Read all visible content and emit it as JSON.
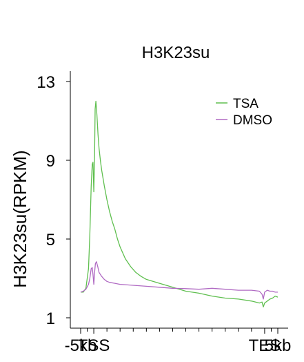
{
  "chart_data": {
    "type": "line",
    "title": "H3K23su",
    "xlabel": "",
    "ylabel": "H3K23su(RPKM)",
    "ylim": [
      1,
      13
    ],
    "yticks": [
      1,
      5,
      9,
      13
    ],
    "xlim": [
      -5,
      75
    ],
    "xticks": [
      {
        "pos": -5,
        "label": "-5kb"
      },
      {
        "pos": 0,
        "label": "TSS"
      },
      {
        "pos": 65,
        "label": "TES"
      },
      {
        "pos": 70,
        "label": "5kb"
      }
    ],
    "xticks_minor": [
      -2.5,
      5,
      10,
      15,
      20,
      25,
      30,
      35,
      40,
      45,
      50,
      55,
      60,
      67.5
    ],
    "grid": false,
    "legend_position": "top-right",
    "series": [
      {
        "name": "TSA",
        "color": "#5fbf4f",
        "x": [
          -5,
          -4,
          -3,
          -2,
          -1.5,
          -1,
          -0.6,
          -0.3,
          0,
          0.3,
          0.5,
          0.8,
          1.2,
          1.6,
          2,
          2.5,
          3,
          3.5,
          4,
          5,
          6,
          7,
          8,
          9,
          10,
          12,
          14,
          16,
          18,
          20,
          25,
          30,
          35,
          40,
          45,
          50,
          55,
          60,
          63,
          64,
          64.5,
          65,
          66,
          67,
          68,
          69,
          70
        ],
        "y": [
          2.3,
          2.3,
          2.5,
          3.5,
          5.2,
          7.7,
          8.8,
          8.9,
          7.4,
          9.2,
          11.6,
          12.0,
          11.3,
          10.3,
          9.6,
          9.0,
          8.5,
          8.1,
          7.7,
          7.0,
          6.4,
          5.9,
          5.5,
          5.0,
          4.6,
          4.0,
          3.6,
          3.3,
          3.1,
          2.95,
          2.75,
          2.55,
          2.35,
          2.25,
          2.1,
          2.0,
          1.95,
          1.85,
          1.75,
          1.8,
          1.55,
          1.75,
          1.85,
          1.95,
          2.0,
          2.1,
          2.05
        ]
      },
      {
        "name": "DMSO",
        "color": "#b06ac3",
        "x": [
          -5,
          -4,
          -3,
          -2,
          -1.5,
          -1,
          -0.6,
          -0.3,
          0,
          0.3,
          0.6,
          1,
          1.5,
          2,
          3,
          4,
          5,
          6,
          8,
          10,
          12,
          15,
          20,
          25,
          30,
          35,
          40,
          45,
          50,
          55,
          60,
          63,
          64,
          64.5,
          65,
          66,
          67,
          68,
          69,
          70
        ],
        "y": [
          2.3,
          2.35,
          2.45,
          2.7,
          3.0,
          3.5,
          3.55,
          3.2,
          2.7,
          3.3,
          3.75,
          3.85,
          3.6,
          3.3,
          3.1,
          2.95,
          2.85,
          2.8,
          2.75,
          2.7,
          2.68,
          2.65,
          2.6,
          2.55,
          2.5,
          2.48,
          2.45,
          2.5,
          2.45,
          2.4,
          2.4,
          2.35,
          2.2,
          1.95,
          2.3,
          2.4,
          2.35,
          2.35,
          2.3,
          2.3
        ]
      }
    ]
  }
}
